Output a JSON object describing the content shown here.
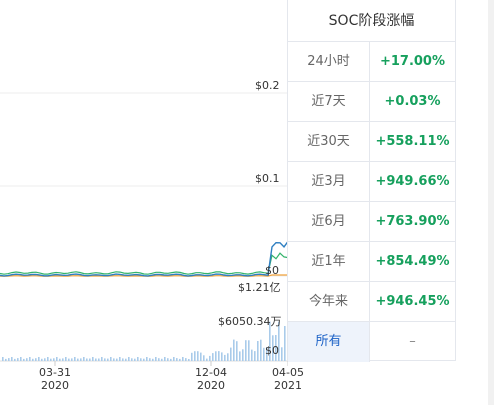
{
  "chart": {
    "price_ticks": [
      "$0.2",
      "$0.1",
      "$0"
    ],
    "volume_ticks": [
      "$1.21亿",
      "$6050.34万",
      "$0"
    ],
    "x_labels": [
      {
        "date": "03-31",
        "year": "2020"
      },
      {
        "date": "12-04",
        "year": "2020"
      },
      {
        "date": "04-05",
        "year": "2021"
      }
    ],
    "colors": {
      "price_line": "#2f7fc1",
      "secondary_line": "#33b36b",
      "baseline": "#f0a23b",
      "volume_bars": "#a9cbea"
    }
  },
  "stats": {
    "title": "SOC阶段涨幅",
    "rows": [
      {
        "label": "24小时",
        "value": "+17.00%"
      },
      {
        "label": "近7天",
        "value": "+0.03%"
      },
      {
        "label": "近30天",
        "value": "+558.11%"
      },
      {
        "label": "近3月",
        "value": "+949.66%"
      },
      {
        "label": "近6月",
        "value": "+763.90%"
      },
      {
        "label": "近1年",
        "value": "+854.49%"
      },
      {
        "label": "今年来",
        "value": "+946.45%"
      }
    ],
    "all_label": "所有",
    "all_value": "–",
    "value_color": "#16a05d"
  }
}
